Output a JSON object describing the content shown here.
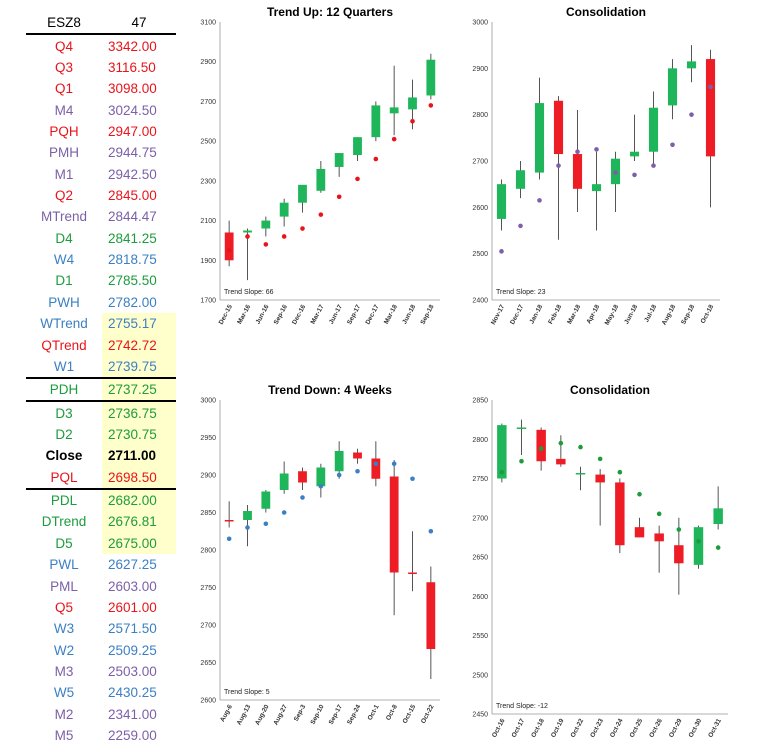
{
  "colors": {
    "red": "#e8141a",
    "purple": "#7c5fa8",
    "green": "#1c9c3c",
    "blue": "#3b7fc4",
    "black": "#000000",
    "highlight": "#ffffcc",
    "candle_up": "#1fb55a",
    "candle_down": "#ee1c24"
  },
  "levels": {
    "header": {
      "symbol": "ESZ8",
      "value": "47"
    },
    "rows": [
      {
        "label": "Q4",
        "value": "3342.00",
        "color": "red",
        "hl": false,
        "rule": false,
        "bold": false
      },
      {
        "label": "Q3",
        "value": "3116.50",
        "color": "red",
        "hl": false,
        "rule": false,
        "bold": false
      },
      {
        "label": "Q1",
        "value": "3098.00",
        "color": "red",
        "hl": false,
        "rule": false,
        "bold": false
      },
      {
        "label": "M4",
        "value": "3024.50",
        "color": "purple",
        "hl": false,
        "rule": false,
        "bold": false
      },
      {
        "label": "PQH",
        "value": "2947.00",
        "color": "red",
        "hl": false,
        "rule": false,
        "bold": false
      },
      {
        "label": "PMH",
        "value": "2944.75",
        "color": "purple",
        "hl": false,
        "rule": false,
        "bold": false
      },
      {
        "label": "M1",
        "value": "2942.50",
        "color": "purple",
        "hl": false,
        "rule": false,
        "bold": false
      },
      {
        "label": "Q2",
        "value": "2845.00",
        "color": "red",
        "hl": false,
        "rule": false,
        "bold": false
      },
      {
        "label": "MTrend",
        "value": "2844.47",
        "color": "purple",
        "hl": false,
        "rule": false,
        "bold": false
      },
      {
        "label": "D4",
        "value": "2841.25",
        "color": "green",
        "hl": false,
        "rule": false,
        "bold": false
      },
      {
        "label": "W4",
        "value": "2818.75",
        "color": "blue",
        "hl": false,
        "rule": false,
        "bold": false
      },
      {
        "label": "D1",
        "value": "2785.50",
        "color": "green",
        "hl": false,
        "rule": false,
        "bold": false
      },
      {
        "label": "PWH",
        "value": "2782.00",
        "color": "blue",
        "hl": false,
        "rule": false,
        "bold": false
      },
      {
        "label": "WTrend",
        "value": "2755.17",
        "color": "blue",
        "hl": true,
        "rule": false,
        "bold": false
      },
      {
        "label": "QTrend",
        "value": "2742.72",
        "color": "red",
        "hl": true,
        "rule": false,
        "bold": false
      },
      {
        "label": "W1",
        "value": "2739.75",
        "color": "blue",
        "hl": true,
        "rule": true,
        "bold": false
      },
      {
        "label": "PDH",
        "value": "2737.25",
        "color": "green",
        "hl": true,
        "rule": true,
        "bold": false
      },
      {
        "label": "D3",
        "value": "2736.75",
        "color": "green",
        "hl": true,
        "rule": false,
        "bold": false
      },
      {
        "label": "D2",
        "value": "2730.75",
        "color": "green",
        "hl": true,
        "rule": false,
        "bold": false
      },
      {
        "label": "Close",
        "value": "2711.00",
        "color": "black",
        "hl": true,
        "rule": false,
        "bold": true
      },
      {
        "label": "PQL",
        "value": "2698.50",
        "color": "red",
        "hl": true,
        "rule": true,
        "bold": false
      },
      {
        "label": "PDL",
        "value": "2682.00",
        "color": "green",
        "hl": true,
        "rule": false,
        "bold": false
      },
      {
        "label": "DTrend",
        "value": "2676.81",
        "color": "green",
        "hl": true,
        "rule": false,
        "bold": false
      },
      {
        "label": "D5",
        "value": "2675.00",
        "color": "green",
        "hl": true,
        "rule": false,
        "bold": false
      },
      {
        "label": "PWL",
        "value": "2627.25",
        "color": "blue",
        "hl": false,
        "rule": false,
        "bold": false
      },
      {
        "label": "PML",
        "value": "2603.00",
        "color": "purple",
        "hl": false,
        "rule": false,
        "bold": false
      },
      {
        "label": "Q5",
        "value": "2601.00",
        "color": "red",
        "hl": false,
        "rule": false,
        "bold": false
      },
      {
        "label": "W3",
        "value": "2571.50",
        "color": "blue",
        "hl": false,
        "rule": false,
        "bold": false
      },
      {
        "label": "W2",
        "value": "2509.25",
        "color": "blue",
        "hl": false,
        "rule": false,
        "bold": false
      },
      {
        "label": "M3",
        "value": "2503.00",
        "color": "purple",
        "hl": false,
        "rule": false,
        "bold": false
      },
      {
        "label": "W5",
        "value": "2430.25",
        "color": "blue",
        "hl": false,
        "rule": false,
        "bold": false
      },
      {
        "label": "M2",
        "value": "2341.00",
        "color": "purple",
        "hl": false,
        "rule": false,
        "bold": false
      },
      {
        "label": "M5",
        "value": "2259.00",
        "color": "purple",
        "hl": false,
        "rule": false,
        "bold": false
      }
    ]
  },
  "chart_data": [
    {
      "type": "candlestick",
      "title": "Trend Up: 12 Quarters",
      "note": "Trend Slope: 66",
      "ylim": [
        1700,
        3100
      ],
      "yticks": [
        1700,
        1900,
        2100,
        2300,
        2500,
        2700,
        2900,
        3100
      ],
      "marker_color": "red",
      "categories": [
        "Dec-15",
        "Mar-16",
        "Jun-16",
        "Sep-16",
        "Dec-16",
        "Mar-17",
        "Jun-17",
        "Sep-17",
        "Dec-17",
        "Mar-18",
        "Jun-18",
        "Sep-18"
      ],
      "open": [
        2040,
        2040,
        2060,
        2120,
        2190,
        2250,
        2370,
        2430,
        2520,
        2640,
        2660,
        2730
      ],
      "high": [
        2100,
        2060,
        2120,
        2210,
        2270,
        2400,
        2440,
        2520,
        2700,
        2880,
        2810,
        2940
      ],
      "low": [
        1870,
        1800,
        2020,
        2070,
        2140,
        2240,
        2320,
        2400,
        2500,
        2530,
        2560,
        2710
      ],
      "close": [
        1900,
        2050,
        2100,
        2190,
        2280,
        2360,
        2440,
        2520,
        2680,
        2670,
        2720,
        2910
      ],
      "marker": [
        1950,
        2020,
        1980,
        2020,
        2060,
        2130,
        2220,
        2310,
        2410,
        2510,
        2600,
        2680
      ]
    },
    {
      "type": "candlestick",
      "title": "Consolidation",
      "note": "Trend Slope: 23",
      "ylim": [
        2400,
        3000
      ],
      "yticks": [
        2400,
        2500,
        2600,
        2700,
        2800,
        2900,
        3000
      ],
      "marker_color": "purple",
      "categories": [
        "Nov-17",
        "Dec-17",
        "Jan-18",
        "Feb-18",
        "Mar-18",
        "Apr-18",
        "May-18",
        "Jun-18",
        "Jul-18",
        "Aug-18",
        "Sep-18",
        "Oct-18"
      ],
      "open": [
        2575,
        2640,
        2675,
        2830,
        2715,
        2635,
        2650,
        2710,
        2720,
        2820,
        2900,
        2920
      ],
      "high": [
        2660,
        2700,
        2880,
        2840,
        2810,
        2720,
        2720,
        2800,
        2850,
        2920,
        2950,
        2940
      ],
      "low": [
        2550,
        2620,
        2660,
        2530,
        2590,
        2550,
        2590,
        2700,
        2690,
        2790,
        2870,
        2600
      ],
      "close": [
        2650,
        2680,
        2825,
        2715,
        2640,
        2650,
        2705,
        2720,
        2815,
        2900,
        2915,
        2710
      ],
      "marker": [
        2505,
        2560,
        2615,
        2690,
        2720,
        2725,
        2675,
        2670,
        2690,
        2735,
        2800,
        2860
      ]
    },
    {
      "type": "candlestick",
      "title": "Trend Down: 4 Weeks",
      "note": "Trend Slope: 5",
      "ylim": [
        2600,
        3000
      ],
      "yticks": [
        2600,
        2650,
        2700,
        2750,
        2800,
        2850,
        2900,
        2950,
        3000
      ],
      "marker_color": "blue",
      "categories": [
        "Aug-6",
        "Aug-13",
        "Aug-20",
        "Aug-27",
        "Sep-3",
        "Sep-10",
        "Sep-17",
        "Sep-24",
        "Oct-1",
        "Oct-8",
        "Oct-15",
        "Oct-22"
      ],
      "open": [
        2840,
        2840,
        2855,
        2880,
        2905,
        2885,
        2905,
        2930,
        2922,
        2898,
        2770,
        2757
      ],
      "high": [
        2865,
        2860,
        2880,
        2918,
        2910,
        2915,
        2945,
        2935,
        2945,
        2920,
        2825,
        2778
      ],
      "low": [
        2830,
        2805,
        2850,
        2875,
        2880,
        2870,
        2895,
        2915,
        2885,
        2713,
        2745,
        2628
      ],
      "close": [
        2838,
        2852,
        2878,
        2902,
        2890,
        2910,
        2932,
        2922,
        2895,
        2770,
        2768,
        2668
      ],
      "marker": [
        2815,
        2830,
        2835,
        2850,
        2870,
        2885,
        2900,
        2905,
        2915,
        2915,
        2895,
        2825
      ]
    },
    {
      "type": "candlestick",
      "title": "Consolidation",
      "note": "Trend Slope: -12",
      "ylim": [
        2450,
        2850
      ],
      "yticks": [
        2450,
        2500,
        2550,
        2600,
        2650,
        2700,
        2750,
        2800,
        2850
      ],
      "marker_color": "green",
      "categories": [
        "Oct-16",
        "Oct-17",
        "Oct-18",
        "Oct-19",
        "Oct-22",
        "Oct-23",
        "Oct-24",
        "Oct-25",
        "Oct-26",
        "Oct-29",
        "Oct-30",
        "Oct-31"
      ],
      "open": [
        2750,
        2815,
        2812,
        2775,
        2757,
        2755,
        2745,
        2688,
        2680,
        2665,
        2640,
        2692
      ],
      "high": [
        2820,
        2825,
        2815,
        2805,
        2765,
        2762,
        2750,
        2700,
        2690,
        2700,
        2690,
        2740
      ],
      "low": [
        2745,
        2780,
        2760,
        2765,
        2735,
        2690,
        2655,
        2675,
        2630,
        2602,
        2635,
        2685
      ],
      "close": [
        2818,
        2815,
        2772,
        2768,
        2757,
        2745,
        2665,
        2675,
        2670,
        2642,
        2688,
        2712
      ],
      "marker": [
        2758,
        2772,
        2788,
        2795,
        2790,
        2775,
        2758,
        2730,
        2705,
        2685,
        2670,
        2662
      ]
    }
  ]
}
